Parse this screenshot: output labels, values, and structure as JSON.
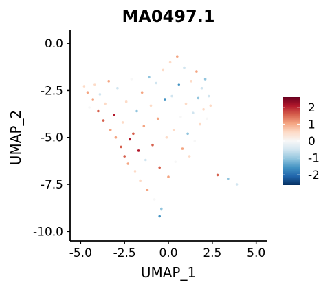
{
  "chart_data": {
    "type": "scatter",
    "title": "MA0497.1",
    "xlabel": "UMAP_1",
    "ylabel": "UMAP_2",
    "xlim": [
      -5.6,
      5.6
    ],
    "ylim": [
      -10.5,
      0.7
    ],
    "x_ticks": [
      {
        "value": -5.0,
        "label": "-5.0"
      },
      {
        "value": -2.5,
        "label": "-2.5"
      },
      {
        "value": 0.0,
        "label": "0.0"
      },
      {
        "value": 2.5,
        "label": "2.5"
      },
      {
        "value": 5.0,
        "label": "5.0"
      }
    ],
    "y_ticks": [
      {
        "value": 0.0,
        "label": "0.0"
      },
      {
        "value": -2.5,
        "label": "-2.5"
      },
      {
        "value": -5.0,
        "label": "-5.0"
      },
      {
        "value": -7.5,
        "label": "-7.5"
      },
      {
        "value": -10.0,
        "label": "-10.0"
      }
    ],
    "grid": false,
    "legend": {
      "placement": "right",
      "scale": "diverging blue-white-red",
      "range": [
        -2.6,
        2.6
      ],
      "ticks": [
        {
          "value": 2,
          "label": "2"
        },
        {
          "value": 1,
          "label": "1"
        },
        {
          "value": 0,
          "label": "0"
        },
        {
          "value": -1,
          "label": "-1"
        },
        {
          "value": -2,
          "label": "-2"
        }
      ],
      "colors": [
        "#053061",
        "#2166ac",
        "#4393c3",
        "#92c5de",
        "#d1e5f0",
        "#f7f7f7",
        "#fddbc7",
        "#f4a582",
        "#d6604d",
        "#b2182b",
        "#67001f"
      ]
    },
    "points": [
      [
        -4.8,
        -2.3,
        0.5
      ],
      [
        -4.6,
        -2.6,
        0.9
      ],
      [
        -4.3,
        -3.0,
        1.1
      ],
      [
        -4.5,
        -3.4,
        -0.2
      ],
      [
        -4.2,
        -2.2,
        0.7
      ],
      [
        -4.0,
        -3.6,
        1.3
      ],
      [
        -3.9,
        -2.7,
        -0.6
      ],
      [
        -3.7,
        -4.1,
        1.6
      ],
      [
        -3.6,
        -3.2,
        0.4
      ],
      [
        -3.4,
        -2.0,
        0.8
      ],
      [
        -3.3,
        -4.6,
        1.2
      ],
      [
        -3.1,
        -3.8,
        2.1
      ],
      [
        -3.0,
        -5.0,
        0.9
      ],
      [
        -2.9,
        -2.4,
        -0.4
      ],
      [
        -2.7,
        -5.5,
        1.4
      ],
      [
        -2.6,
        -4.2,
        0.3
      ],
      [
        -2.5,
        -6.0,
        1.8
      ],
      [
        -2.4,
        -3.1,
        0.6
      ],
      [
        -2.3,
        -6.4,
        1.0
      ],
      [
        -2.2,
        -5.1,
        2.3
      ],
      [
        -2.1,
        -1.9,
        0.2
      ],
      [
        -2.0,
        -4.8,
        1.5
      ],
      [
        -1.9,
        -6.8,
        0.7
      ],
      [
        -1.8,
        -3.6,
        -1.1
      ],
      [
        -1.7,
        -5.7,
        1.9
      ],
      [
        -1.6,
        -7.3,
        0.4
      ],
      [
        -1.5,
        -2.6,
        0.9
      ],
      [
        -1.4,
        -4.4,
        1.2
      ],
      [
        -1.3,
        -6.2,
        -0.3
      ],
      [
        -1.2,
        -7.8,
        1.1
      ],
      [
        -1.1,
        -1.8,
        -0.8
      ],
      [
        -1.0,
        -3.3,
        0.5
      ],
      [
        -0.9,
        -5.4,
        1.3
      ],
      [
        -0.8,
        -8.3,
        0.2
      ],
      [
        -0.7,
        -2.1,
        -0.5
      ],
      [
        -0.6,
        -4.0,
        0.8
      ],
      [
        -0.5,
        -6.6,
        1.6
      ],
      [
        -0.4,
        -8.8,
        -0.9
      ],
      [
        -0.3,
        -1.4,
        0.3
      ],
      [
        -0.2,
        -3.0,
        -1.4
      ],
      [
        -0.1,
        -5.0,
        0.6
      ],
      [
        0.0,
        -7.1,
        1.0
      ],
      [
        0.1,
        -1.0,
        0.7
      ],
      [
        0.2,
        -2.8,
        -0.7
      ],
      [
        0.3,
        -4.6,
        0.4
      ],
      [
        0.4,
        -6.3,
        -0.2
      ],
      [
        0.5,
        -0.7,
        1.2
      ],
      [
        0.6,
        -2.2,
        -1.7
      ],
      [
        0.7,
        -3.9,
        0.1
      ],
      [
        0.8,
        -5.6,
        0.8
      ],
      [
        0.9,
        -1.3,
        -0.3
      ],
      [
        1.0,
        -3.2,
        0.5
      ],
      [
        1.1,
        -4.8,
        -0.9
      ],
      [
        1.2,
        -6.0,
        0.3
      ],
      [
        1.3,
        -2.0,
        0.6
      ],
      [
        1.4,
        -3.7,
        -0.4
      ],
      [
        1.5,
        -5.2,
        0.2
      ],
      [
        1.6,
        -1.5,
        0.9
      ],
      [
        1.7,
        -2.9,
        -1.0
      ],
      [
        1.8,
        -4.3,
        0.4
      ],
      [
        1.9,
        -2.4,
        -0.6
      ],
      [
        2.0,
        -3.5,
        0.7
      ],
      [
        2.1,
        -1.9,
        -1.2
      ],
      [
        2.2,
        -4.0,
        0.1
      ],
      [
        2.3,
        -2.8,
        -0.5
      ],
      [
        2.4,
        -3.3,
        0.3
      ],
      [
        2.8,
        -7.0,
        1.8
      ],
      [
        3.4,
        -7.2,
        -0.9
      ],
      [
        3.9,
        -7.5,
        -0.3
      ],
      [
        -0.5,
        -9.2,
        -1.6
      ]
    ]
  }
}
